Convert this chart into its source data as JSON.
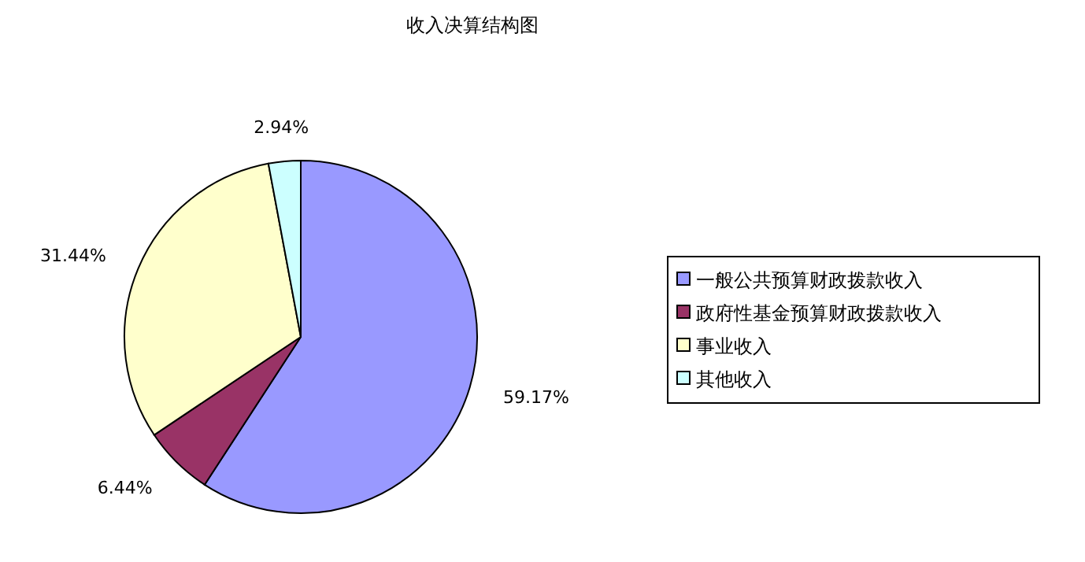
{
  "chart_data": {
    "type": "pie",
    "title": "收入决算结构图",
    "categories": [
      "一般公共预算财政拨款收入",
      "政府性基金预算财政拨款收入",
      "事业收入",
      "其他收入"
    ],
    "values": [
      59.17,
      6.44,
      31.44,
      2.94
    ],
    "colors": [
      "#9999ff",
      "#993366",
      "#ffffcc",
      "#ccffff"
    ],
    "value_labels": [
      "59.17%",
      "6.44%",
      "31.44%",
      "2.94%"
    ],
    "legend": "right"
  }
}
